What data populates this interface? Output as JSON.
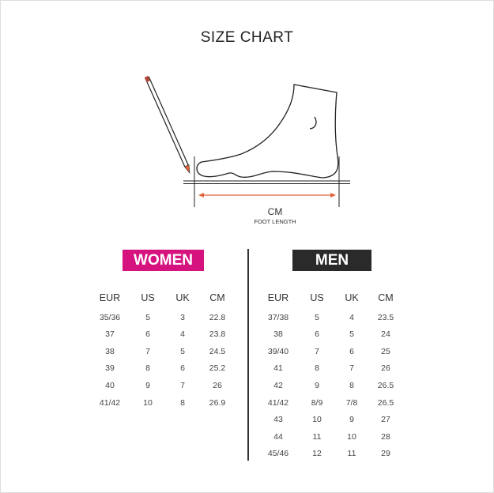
{
  "title": "SIZE CHART",
  "diagram": {
    "unit_label": "CM",
    "measure_label": "FOOT LENGTH"
  },
  "colors": {
    "women": "#d6127f",
    "men": "#2a2a2a",
    "arrow": "#e0623a"
  },
  "women": {
    "label": "WOMEN",
    "headers": [
      "EUR",
      "US",
      "UK",
      "CM"
    ],
    "rows": [
      [
        "35/36",
        "5",
        "3",
        "22.8"
      ],
      [
        "37",
        "6",
        "4",
        "23.8"
      ],
      [
        "38",
        "7",
        "5",
        "24.5"
      ],
      [
        "39",
        "8",
        "6",
        "25.2"
      ],
      [
        "40",
        "9",
        "7",
        "26"
      ],
      [
        "41/42",
        "10",
        "8",
        "26.9"
      ]
    ]
  },
  "men": {
    "label": "MEN",
    "headers": [
      "EUR",
      "US",
      "UK",
      "CM"
    ],
    "rows": [
      [
        "37/38",
        "5",
        "4",
        "23.5"
      ],
      [
        "38",
        "6",
        "5",
        "24"
      ],
      [
        "39/40",
        "7",
        "6",
        "25"
      ],
      [
        "41",
        "8",
        "7",
        "26"
      ],
      [
        "42",
        "9",
        "8",
        "26.5"
      ],
      [
        "41/42",
        "8/9",
        "7/8",
        "26.5"
      ],
      [
        "43",
        "10",
        "9",
        "27"
      ],
      [
        "44",
        "11",
        "10",
        "28"
      ],
      [
        "45/46",
        "12",
        "11",
        "29"
      ]
    ]
  }
}
